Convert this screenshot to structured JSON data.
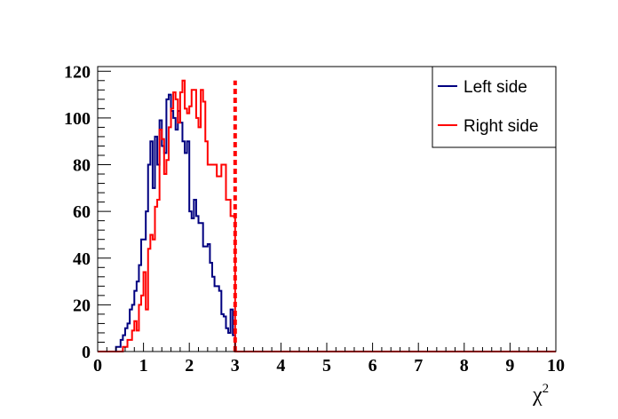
{
  "chart_data": {
    "type": "line",
    "style": "step-histogram",
    "xlabel": "χ",
    "xlabel_superscript": "2",
    "xlim": [
      0,
      10
    ],
    "ylim": [
      0,
      122
    ],
    "xticks": [
      "0",
      "1",
      "2",
      "3",
      "4",
      "5",
      "6",
      "7",
      "8",
      "9",
      "10"
    ],
    "yticks": [
      "0",
      "20",
      "40",
      "60",
      "80",
      "100",
      "120"
    ],
    "legend_position": "top-right",
    "grid": false,
    "bin_width": 0.05,
    "series": [
      {
        "name": "Left side",
        "color": "#000080",
        "bins": [
          [
            0.4,
            2
          ],
          [
            0.45,
            2
          ],
          [
            0.5,
            5
          ],
          [
            0.55,
            7
          ],
          [
            0.6,
            10
          ],
          [
            0.65,
            12
          ],
          [
            0.7,
            18
          ],
          [
            0.75,
            20
          ],
          [
            0.8,
            26
          ],
          [
            0.85,
            30
          ],
          [
            0.9,
            37
          ],
          [
            0.95,
            48
          ],
          [
            1.0,
            48
          ],
          [
            1.05,
            60
          ],
          [
            1.1,
            80
          ],
          [
            1.15,
            90
          ],
          [
            1.2,
            70
          ],
          [
            1.25,
            92
          ],
          [
            1.3,
            80
          ],
          [
            1.35,
            99
          ],
          [
            1.4,
            88
          ],
          [
            1.45,
            85
          ],
          [
            1.5,
            108
          ],
          [
            1.55,
            110
          ],
          [
            1.6,
            103
          ],
          [
            1.65,
            100
          ],
          [
            1.7,
            95
          ],
          [
            1.75,
            103
          ],
          [
            1.8,
            98
          ],
          [
            1.85,
            90
          ],
          [
            1.9,
            85
          ],
          [
            1.95,
            90
          ],
          [
            2.0,
            60
          ],
          [
            2.05,
            57
          ],
          [
            2.1,
            65
          ],
          [
            2.15,
            58
          ],
          [
            2.2,
            55
          ],
          [
            2.25,
            55
          ],
          [
            2.3,
            45
          ],
          [
            2.35,
            45
          ],
          [
            2.4,
            46
          ],
          [
            2.45,
            38
          ],
          [
            2.5,
            32
          ],
          [
            2.55,
            28
          ],
          [
            2.6,
            28
          ],
          [
            2.65,
            26
          ],
          [
            2.7,
            16
          ],
          [
            2.75,
            15
          ],
          [
            2.8,
            10
          ],
          [
            2.85,
            8
          ],
          [
            2.9,
            18
          ],
          [
            2.95,
            7
          ]
        ]
      },
      {
        "name": "Right side",
        "color": "#ff0000",
        "bins": [
          [
            0.55,
            2
          ],
          [
            0.6,
            2
          ],
          [
            0.65,
            5
          ],
          [
            0.7,
            5
          ],
          [
            0.75,
            9
          ],
          [
            0.8,
            13
          ],
          [
            0.85,
            9
          ],
          [
            0.9,
            20
          ],
          [
            0.95,
            24
          ],
          [
            1.0,
            34
          ],
          [
            1.05,
            18
          ],
          [
            1.1,
            44
          ],
          [
            1.15,
            50
          ],
          [
            1.2,
            48
          ],
          [
            1.25,
            62
          ],
          [
            1.3,
            65
          ],
          [
            1.35,
            95
          ],
          [
            1.4,
            91
          ],
          [
            1.45,
            76
          ],
          [
            1.5,
            82
          ],
          [
            1.55,
            96
          ],
          [
            1.6,
            104
          ],
          [
            1.65,
            111
          ],
          [
            1.7,
            108
          ],
          [
            1.75,
            98
          ],
          [
            1.8,
            111
          ],
          [
            1.85,
            116
          ],
          [
            1.9,
            104
          ],
          [
            1.95,
            102
          ],
          [
            2.0,
            105
          ],
          [
            2.05,
            112
          ],
          [
            2.1,
            112
          ],
          [
            2.15,
            100
          ],
          [
            2.2,
            96
          ],
          [
            2.25,
            112
          ],
          [
            2.3,
            107
          ],
          [
            2.35,
            90
          ],
          [
            2.4,
            80
          ],
          [
            2.45,
            80
          ],
          [
            2.5,
            80
          ],
          [
            2.55,
            80
          ],
          [
            2.6,
            75
          ],
          [
            2.65,
            75
          ],
          [
            2.7,
            80
          ],
          [
            2.75,
            80
          ],
          [
            2.8,
            65
          ],
          [
            2.85,
            65
          ],
          [
            2.9,
            58
          ],
          [
            2.95,
            58
          ]
        ]
      }
    ],
    "annotations": [
      {
        "type": "vertical-dashed-line",
        "x": 3.0,
        "color": "#ff0000"
      }
    ]
  }
}
